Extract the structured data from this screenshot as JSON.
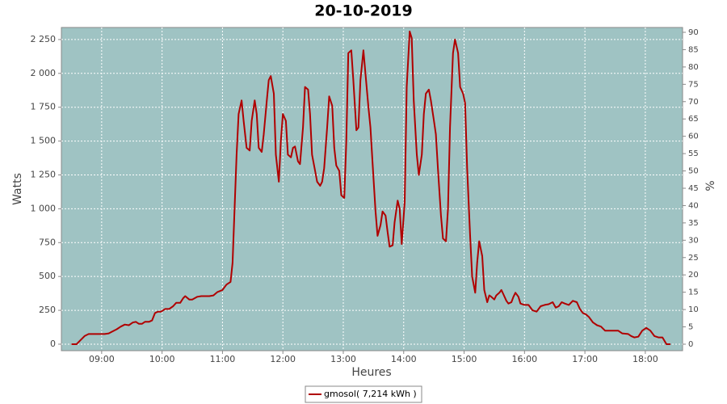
{
  "chart_data": {
    "type": "line",
    "title": "20-10-2019",
    "x_label": "Heures",
    "y_label": "Watts",
    "y2_label": "%",
    "x": [
      510,
      515,
      519,
      523,
      527,
      535,
      543,
      547,
      551,
      555,
      559,
      563,
      567,
      571,
      574,
      577,
      580,
      583,
      587,
      590,
      593,
      596,
      599,
      603,
      607,
      611,
      614,
      618,
      621,
      623,
      627,
      630,
      635,
      639,
      647,
      651,
      655,
      660,
      664,
      668,
      670,
      672,
      674,
      676,
      679,
      681,
      684,
      687,
      689,
      692,
      694,
      696,
      699,
      701,
      704,
      706,
      708,
      711,
      713,
      716,
      718,
      720,
      723,
      725,
      728,
      730,
      732,
      735,
      737,
      740,
      742,
      745,
      747,
      749,
      752,
      754,
      757,
      759,
      761,
      764,
      766,
      769,
      771,
      773,
      776,
      778,
      781,
      783,
      785,
      788,
      790,
      793,
      795,
      797,
      800,
      802,
      805,
      807,
      809,
      812,
      814,
      817,
      819,
      822,
      824,
      826,
      829,
      831,
      834,
      836,
      838,
      841,
      843,
      846,
      848,
      850,
      853,
      855,
      858,
      860,
      862,
      865,
      867,
      870,
      872,
      874,
      877,
      879,
      882,
      884,
      886,
      889,
      891,
      894,
      896,
      899,
      901,
      903,
      906,
      908,
      911,
      913,
      915,
      918,
      920,
      923,
      925,
      927,
      930,
      932,
      935,
      937,
      939,
      942,
      944,
      947,
      949,
      951,
      954,
      956,
      960,
      964,
      968,
      972,
      976,
      980,
      984,
      988,
      991,
      994,
      997,
      1000,
      1004,
      1008,
      1012,
      1015,
      1018,
      1021,
      1024,
      1028,
      1032,
      1036,
      1040,
      1048,
      1053,
      1057,
      1063,
      1066,
      1069,
      1073,
      1077,
      1081,
      1085,
      1089,
      1093,
      1097,
      1101,
      1105
    ],
    "series": [
      {
        "name": "gmosol( 7,214 kWh )",
        "color": "#b00000",
        "values": [
          0,
          0,
          30,
          60,
          75,
          75,
          75,
          80,
          95,
          110,
          130,
          145,
          140,
          160,
          165,
          150,
          150,
          165,
          165,
          175,
          230,
          240,
          240,
          260,
          260,
          280,
          305,
          305,
          340,
          355,
          330,
          330,
          350,
          355,
          355,
          360,
          385,
          400,
          440,
          460,
          600,
          1000,
          1400,
          1700,
          1800,
          1650,
          1450,
          1430,
          1650,
          1800,
          1700,
          1450,
          1420,
          1550,
          1800,
          1950,
          1980,
          1850,
          1400,
          1200,
          1500,
          1700,
          1650,
          1400,
          1380,
          1450,
          1460,
          1350,
          1330,
          1600,
          1900,
          1880,
          1700,
          1400,
          1280,
          1200,
          1170,
          1200,
          1300,
          1600,
          1830,
          1760,
          1450,
          1320,
          1280,
          1100,
          1080,
          1500,
          2150,
          2170,
          1950,
          1580,
          1600,
          1950,
          2170,
          2000,
          1750,
          1600,
          1350,
          980,
          800,
          880,
          980,
          950,
          830,
          720,
          730,
          900,
          1060,
          1000,
          740,
          1050,
          1900,
          2310,
          2260,
          1800,
          1400,
          1250,
          1400,
          1700,
          1850,
          1880,
          1800,
          1650,
          1550,
          1300,
          950,
          780,
          760,
          1000,
          1600,
          2150,
          2250,
          2150,
          1900,
          1850,
          1780,
          1300,
          800,
          500,
          380,
          600,
          760,
          650,
          400,
          310,
          360,
          350,
          330,
          360,
          380,
          400,
          370,
          320,
          300,
          310,
          350,
          380,
          350,
          300,
          290,
          290,
          250,
          240,
          280,
          290,
          295,
          310,
          270,
          280,
          310,
          300,
          290,
          320,
          310,
          260,
          230,
          220,
          200,
          160,
          140,
          130,
          100,
          100,
          100,
          80,
          75,
          60,
          50,
          55,
          100,
          120,
          100,
          60,
          50,
          50,
          0,
          0
        ]
      }
    ],
    "xlim": [
      500,
      1117
    ],
    "xticks": [
      {
        "value": 540,
        "label": "09:00"
      },
      {
        "value": 600,
        "label": "10:00"
      },
      {
        "value": 660,
        "label": "11:00"
      },
      {
        "value": 720,
        "label": "12:00"
      },
      {
        "value": 780,
        "label": "13:00"
      },
      {
        "value": 840,
        "label": "14:00"
      },
      {
        "value": 900,
        "label": "15:00"
      },
      {
        "value": 960,
        "label": "16:00"
      },
      {
        "value": 1020,
        "label": "17:00"
      },
      {
        "value": 1080,
        "label": "18:00"
      }
    ],
    "ylim": [
      -48,
      2339
    ],
    "yticks": [
      0,
      250,
      500,
      750,
      {
        "value": 1000,
        "label": "1 000"
      },
      {
        "value": 1250,
        "label": "1 250"
      },
      {
        "value": 1500,
        "label": "1 500"
      },
      {
        "value": 1750,
        "label": "1 750"
      },
      {
        "value": 2000,
        "label": "2 000"
      },
      {
        "value": 2250,
        "label": "2 250"
      }
    ],
    "y2lim": [
      -1.87,
      91.4
    ],
    "y2ticks": [
      0,
      5,
      10,
      15,
      20,
      25,
      30,
      35,
      40,
      45,
      50,
      55,
      60,
      65,
      70,
      75,
      80,
      85,
      90
    ],
    "grid": true,
    "plot_background": "#9fc3c3",
    "legend": "bottom"
  }
}
